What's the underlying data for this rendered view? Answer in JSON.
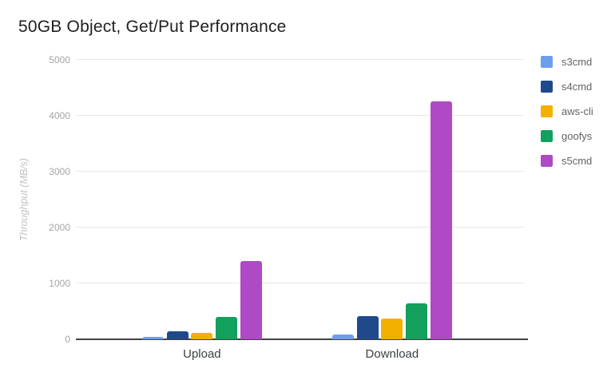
{
  "chart_data": {
    "type": "bar",
    "title": "50GB Object, Get/Put Performance",
    "categories": [
      "Upload",
      "Download"
    ],
    "series": [
      {
        "name": "s3cmd",
        "color": "#6D9EEB",
        "values": [
          50,
          85
        ]
      },
      {
        "name": "s4cmd",
        "color": "#20498B",
        "values": [
          140,
          410
        ]
      },
      {
        "name": "aws-cli",
        "color": "#F4B000",
        "values": [
          110,
          365
        ]
      },
      {
        "name": "goofys",
        "color": "#12A05C",
        "values": [
          395,
          640
        ]
      },
      {
        "name": "s5cmd",
        "color": "#AF49C5",
        "values": [
          1400,
          4260
        ]
      }
    ],
    "xlabel": "",
    "ylabel": "Throughput (MB/s)",
    "ylim": [
      0,
      5000
    ],
    "yticks": [
      0,
      1000,
      2000,
      3000,
      4000,
      5000
    ],
    "grid": true,
    "legend_position": "right"
  },
  "colors": {
    "background": "#FFFFFF",
    "gridline": "#E6E6E6",
    "axis_line": "#424242",
    "tick_label_color": "#A5A5A5",
    "axis_title_color": "#C2C2C2",
    "category_label_color": "#3C4043",
    "legend_label_color": "#5F6368",
    "title_color": "#1F1F1F"
  }
}
